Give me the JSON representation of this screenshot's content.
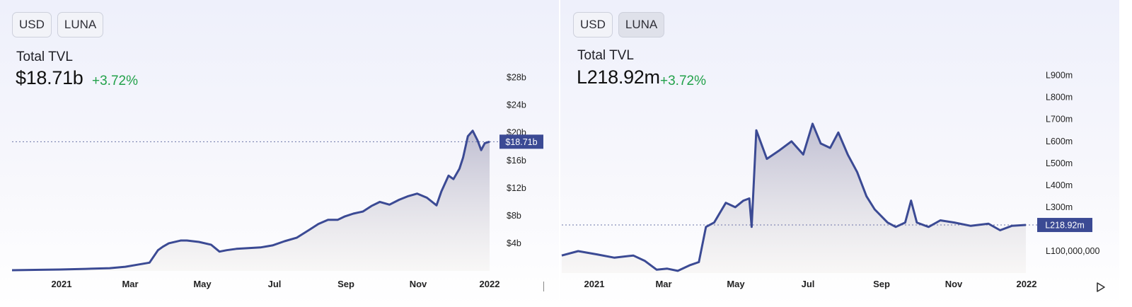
{
  "panels": [
    {
      "buttons": [
        {
          "label": "USD",
          "active": true
        },
        {
          "label": "LUNA",
          "active": false
        }
      ],
      "metric_label": "Total TVL",
      "value": "$18.71b",
      "change": "+3.72%",
      "marker_label": "$18.71b"
    },
    {
      "buttons": [
        {
          "label": "USD",
          "active": false
        },
        {
          "label": "LUNA",
          "active": true
        }
      ],
      "metric_label": "Total TVL",
      "value": "L218.92m",
      "change": "+3.72%",
      "marker_label": "L218.92m"
    }
  ],
  "colors": {
    "line": "#3b4a94",
    "area_top": "#bdbcd0",
    "area_bottom": "#f5f3f1",
    "marker_bg": "#3b4a94",
    "positive": "#22a14a"
  },
  "icons": [
    "play-icon"
  ],
  "chart_data": [
    {
      "type": "area",
      "currency": "USD",
      "x_ticks": [
        "2021",
        "Mar",
        "May",
        "Jul",
        "Sep",
        "Nov",
        "2022"
      ],
      "y_ticks": [
        "$4b",
        "$8b",
        "$12b",
        "$16b",
        "$20b",
        "$24b",
        "$28b"
      ],
      "y_tick_values": [
        4,
        8,
        12,
        16,
        20,
        24,
        28
      ],
      "ylim": [
        0,
        29.5
      ],
      "x_range": [
        "2020-12-01",
        "2022-01-01"
      ],
      "current_value": 18.71,
      "series": [
        {
          "x": [
            "2020-12-01",
            "2020-12-20",
            "2021-01-10",
            "2021-01-31",
            "2021-02-20",
            "2021-03-05",
            "2021-03-15",
            "2021-03-25",
            "2021-04-01",
            "2021-04-05",
            "2021-04-10",
            "2021-04-20",
            "2021-04-25",
            "2021-05-05",
            "2021-05-15",
            "2021-05-22",
            "2021-05-28",
            "2021-06-05",
            "2021-06-15",
            "2021-06-25",
            "2021-07-05",
            "2021-07-15",
            "2021-07-25",
            "2021-08-05",
            "2021-08-12",
            "2021-08-20",
            "2021-08-28",
            "2021-09-03",
            "2021-09-10",
            "2021-09-18",
            "2021-09-25",
            "2021-10-02",
            "2021-10-10",
            "2021-10-18",
            "2021-10-25",
            "2021-11-02",
            "2021-11-10",
            "2021-11-18",
            "2021-11-22",
            "2021-11-28",
            "2021-12-02",
            "2021-12-07",
            "2021-12-10",
            "2021-12-14",
            "2021-12-18",
            "2021-12-22",
            "2021-12-25",
            "2021-12-28",
            "2022-01-01"
          ],
          "values": [
            0.1,
            0.15,
            0.2,
            0.3,
            0.4,
            0.6,
            0.9,
            1.2,
            3.0,
            3.5,
            4.0,
            4.4,
            4.4,
            4.2,
            3.8,
            2.8,
            3.0,
            3.2,
            3.3,
            3.4,
            3.7,
            4.3,
            4.8,
            6.0,
            6.8,
            7.4,
            7.4,
            7.9,
            8.3,
            8.6,
            9.4,
            10.0,
            9.6,
            10.3,
            10.8,
            11.2,
            10.6,
            9.5,
            11.5,
            13.8,
            13.3,
            14.8,
            16.4,
            19.5,
            20.3,
            18.9,
            17.5,
            18.5,
            18.71
          ]
        }
      ]
    },
    {
      "type": "area",
      "currency": "LUNA",
      "x_ticks": [
        "2021",
        "Mar",
        "May",
        "Jul",
        "Sep",
        "Nov",
        "2022"
      ],
      "y_ticks": [
        "L100,000,000",
        "L300m",
        "L400m",
        "L500m",
        "L600m",
        "L700m",
        "L800m",
        "L900m"
      ],
      "y_tick_values": [
        100,
        300,
        400,
        500,
        600,
        700,
        800,
        900
      ],
      "ylim": [
        0,
        960
      ],
      "x_range": [
        "2020-12-01",
        "2022-01-01"
      ],
      "current_value": 218.92,
      "series": [
        {
          "x": [
            "2020-12-01",
            "2020-12-15",
            "2020-12-31",
            "2021-01-15",
            "2021-01-31",
            "2021-02-10",
            "2021-02-20",
            "2021-03-01",
            "2021-03-10",
            "2021-03-20",
            "2021-03-28",
            "2021-04-03",
            "2021-04-10",
            "2021-04-20",
            "2021-04-28",
            "2021-05-05",
            "2021-05-10",
            "2021-05-12",
            "2021-05-16",
            "2021-05-25",
            "2021-06-05",
            "2021-06-15",
            "2021-06-25",
            "2021-07-03",
            "2021-07-10",
            "2021-07-18",
            "2021-07-25",
            "2021-08-02",
            "2021-08-10",
            "2021-08-18",
            "2021-08-25",
            "2021-09-05",
            "2021-09-12",
            "2021-09-20",
            "2021-09-25",
            "2021-09-30",
            "2021-10-10",
            "2021-10-20",
            "2021-11-01",
            "2021-11-15",
            "2021-11-30",
            "2021-12-10",
            "2021-12-20",
            "2022-01-01"
          ],
          "values": [
            80,
            100,
            85,
            70,
            80,
            55,
            15,
            20,
            10,
            35,
            50,
            210,
            230,
            320,
            300,
            330,
            340,
            210,
            650,
            520,
            560,
            600,
            540,
            680,
            590,
            570,
            640,
            540,
            460,
            350,
            290,
            230,
            210,
            230,
            330,
            230,
            210,
            240,
            230,
            215,
            225,
            195,
            215,
            219
          ]
        }
      ]
    }
  ]
}
